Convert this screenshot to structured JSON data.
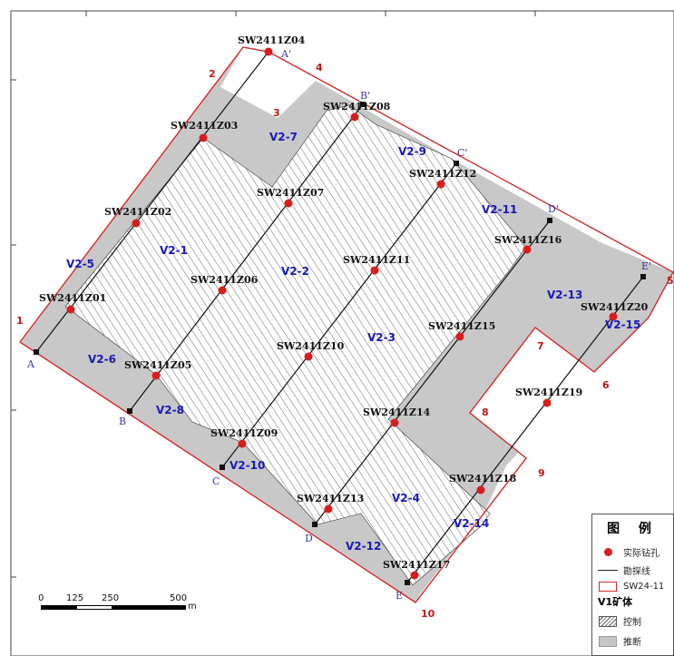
{
  "drill_holes": [
    {
      "id": "SW2411Z04"
    },
    {
      "id": "SW2411Z03"
    },
    {
      "id": "SW2411Z02"
    },
    {
      "id": "SW2411Z01"
    },
    {
      "id": "SW2411Z08"
    },
    {
      "id": "SW2411Z07"
    },
    {
      "id": "SW2411Z06"
    },
    {
      "id": "SW2411Z05"
    },
    {
      "id": "SW2411Z12"
    },
    {
      "id": "SW2411Z11"
    },
    {
      "id": "SW2411Z10"
    },
    {
      "id": "SW2411Z09"
    },
    {
      "id": "SW2411Z16"
    },
    {
      "id": "SW2411Z15"
    },
    {
      "id": "SW2411Z14"
    },
    {
      "id": "SW2411Z13"
    },
    {
      "id": "SW2411Z20"
    },
    {
      "id": "SW2411Z19"
    },
    {
      "id": "SW2411Z18"
    },
    {
      "id": "SW2411Z17"
    }
  ],
  "blocks": [
    {
      "id": "V2-1"
    },
    {
      "id": "V2-2"
    },
    {
      "id": "V2-3"
    },
    {
      "id": "V2-4"
    },
    {
      "id": "V2-5"
    },
    {
      "id": "V2-6"
    },
    {
      "id": "V2-7"
    },
    {
      "id": "V2-8"
    },
    {
      "id": "V2-9"
    },
    {
      "id": "V2-10"
    },
    {
      "id": "V2-11"
    },
    {
      "id": "V2-12"
    },
    {
      "id": "V2-13"
    },
    {
      "id": "V2-14"
    },
    {
      "id": "V2-15"
    }
  ],
  "boundary_corners": [
    "1",
    "2",
    "3",
    "4",
    "5",
    "6",
    "7",
    "8",
    "9",
    "10"
  ],
  "exploration_line_ends": {
    "start": [
      "A",
      "B",
      "C",
      "D",
      "E"
    ],
    "end": [
      "A'",
      "B'",
      "C'",
      "D'",
      "E'"
    ]
  },
  "legend": {
    "title": "图 例",
    "drill_hole": "实际钻孔",
    "exploration_line": "勘探线",
    "boundary": "SW24-11",
    "orebody_title": "V1矿体",
    "controlled": "控制",
    "inferred": "推断"
  },
  "scale_bar": {
    "ticks": [
      "0",
      "125",
      "250",
      "500"
    ],
    "unit": "m"
  },
  "colors": {
    "inferred_fill": "#c8c8c8",
    "boundary": "#d32a2a",
    "drill_hole": "#d91c1c",
    "block_label": "#1a1ab8"
  }
}
